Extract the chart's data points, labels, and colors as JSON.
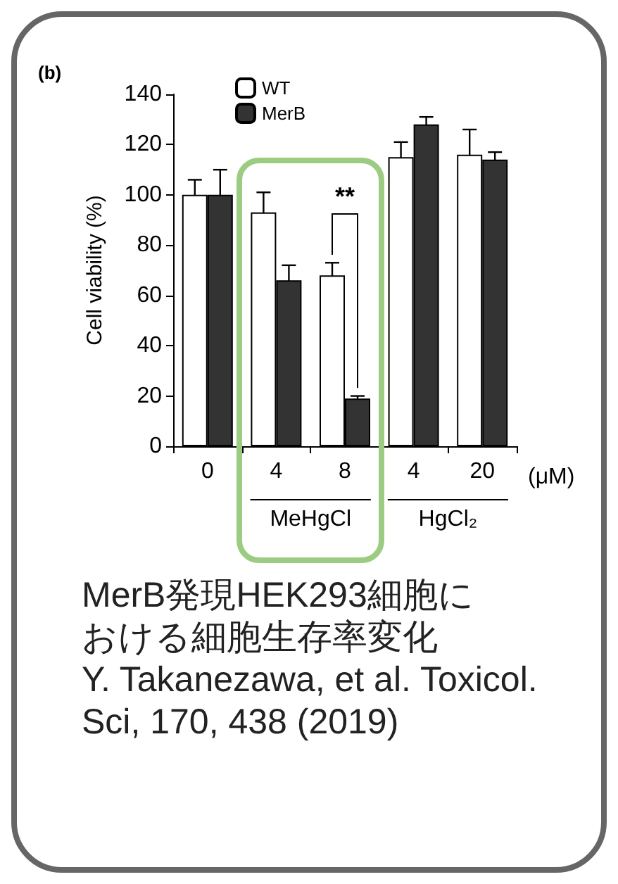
{
  "chart_data": {
    "type": "bar",
    "title": "(b)",
    "ylabel": "Cell viability (%)",
    "categories": [
      "0",
      "4",
      "8",
      "4",
      "20"
    ],
    "series": [
      {
        "name": "WT",
        "color": "#ffffff",
        "values": [
          100,
          93,
          68,
          115,
          116
        ],
        "errors": [
          6,
          8,
          5,
          6,
          10
        ]
      },
      {
        "name": "MerB",
        "color": "#333333",
        "values": [
          100,
          66,
          19,
          128,
          114
        ],
        "errors": [
          10,
          6,
          1,
          3,
          3
        ]
      }
    ],
    "ylim": [
      0,
      140
    ],
    "yticks": [
      0,
      20,
      40,
      60,
      80,
      100,
      120,
      140
    ],
    "legend": "top",
    "grid": false,
    "annotations": [
      "(μM)",
      "MeHgCl",
      "HgCl₂",
      "**",
      "MerB発現HEK293細胞における細胞生存率変化",
      "Y. Takanezawa, et al. Toxicol. Sci, 170, 438 (2019)"
    ]
  }
}
